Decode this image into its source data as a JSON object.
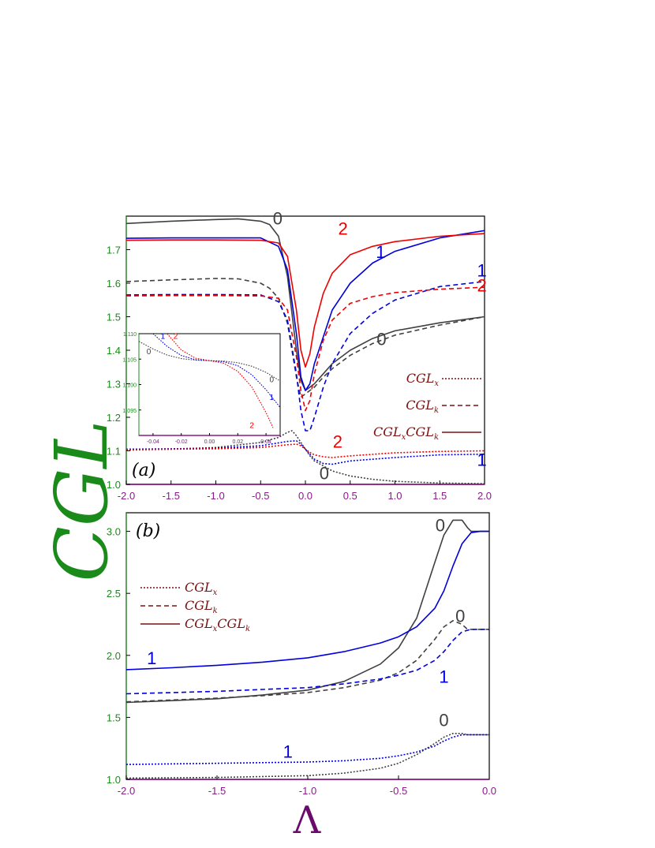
{
  "figure": {
    "ylabel": "CGL",
    "xlabel": "Λ"
  },
  "colors": {
    "n0": "#404040",
    "n1": "#0000dd",
    "n2": "#ee0000",
    "legend": "#7a1010",
    "yaxis": "#1a8a1a",
    "xaxis": "#8a1a8a"
  },
  "chart_data": [
    {
      "type": "line",
      "panel_tag": "(a)",
      "xlim": [
        -2.0,
        2.0
      ],
      "ylim": [
        1.0,
        1.8
      ],
      "xticks": [
        "-2.0",
        "-1.5",
        "-1.0",
        "-0.5",
        "0.0",
        "0.5",
        "1.0",
        "1.5",
        "2.0"
      ],
      "yticks": [
        "1.0",
        "1.1",
        "1.2",
        "1.3",
        "1.4",
        "1.5",
        "1.6",
        "1.7"
      ],
      "legend": [
        {
          "style": "dotted",
          "label": "CGL",
          "sub": "x"
        },
        {
          "style": "dashed",
          "label": "CGL",
          "sub": "k"
        },
        {
          "style": "solid",
          "label": "CGL",
          "sub": "x",
          "label2": "CGL",
          "sub2": "k"
        }
      ],
      "curve_labels": [
        {
          "text": "0",
          "color": "n0",
          "x": -0.31,
          "y": 1.775
        },
        {
          "text": "2",
          "color": "n2",
          "x": 0.42,
          "y": 1.745
        },
        {
          "text": "1",
          "color": "n1",
          "x": 0.84,
          "y": 1.675
        },
        {
          "text": "1",
          "color": "n1",
          "x": 1.97,
          "y": 1.62
        },
        {
          "text": "2",
          "color": "n2",
          "x": 1.97,
          "y": 1.575
        },
        {
          "text": "0",
          "color": "n0",
          "x": 0.85,
          "y": 1.415
        },
        {
          "text": "2",
          "color": "n2",
          "x": 0.36,
          "y": 1.11
        },
        {
          "text": "1",
          "color": "n1",
          "x": 1.97,
          "y": 1.055
        },
        {
          "text": "0",
          "color": "n0",
          "x": 0.21,
          "y": 1.015
        }
      ],
      "series": [
        {
          "n": 0,
          "style": "solid",
          "x": [
            -2.0,
            -1.5,
            -1.0,
            -0.75,
            -0.5,
            -0.4,
            -0.3,
            -0.2,
            -0.1,
            -0.05,
            0.0,
            0.05,
            0.1,
            0.2,
            0.3,
            0.5,
            0.75,
            1.0,
            1.5,
            2.0
          ],
          "y": [
            1.778,
            1.785,
            1.79,
            1.792,
            1.785,
            1.775,
            1.74,
            1.62,
            1.4,
            1.31,
            1.28,
            1.29,
            1.3,
            1.33,
            1.36,
            1.4,
            1.435,
            1.458,
            1.482,
            1.5
          ]
        },
        {
          "n": 0,
          "style": "dashed",
          "x": [
            -2.0,
            -1.5,
            -1.0,
            -0.75,
            -0.5,
            -0.4,
            -0.3,
            -0.2,
            -0.1,
            -0.05,
            0.0,
            0.05,
            0.1,
            0.2,
            0.3,
            0.5,
            0.75,
            1.0,
            1.5,
            2.0
          ],
          "y": [
            1.605,
            1.61,
            1.614,
            1.613,
            1.6,
            1.585,
            1.555,
            1.48,
            1.32,
            1.26,
            1.27,
            1.28,
            1.29,
            1.32,
            1.345,
            1.385,
            1.42,
            1.445,
            1.475,
            1.5
          ]
        },
        {
          "n": 0,
          "style": "dotted",
          "x": [
            -2.0,
            -1.5,
            -1.0,
            -0.5,
            -0.3,
            -0.2,
            -0.15,
            -0.1,
            -0.05,
            0.0,
            0.05,
            0.1,
            0.2,
            0.3,
            0.5,
            0.75,
            1.0,
            1.5,
            2.0
          ],
          "y": [
            1.102,
            1.105,
            1.11,
            1.125,
            1.14,
            1.155,
            1.16,
            1.145,
            1.125,
            1.105,
            1.085,
            1.07,
            1.055,
            1.04,
            1.025,
            1.015,
            1.009,
            1.004,
            1.002
          ]
        },
        {
          "n": 1,
          "style": "solid",
          "x": [
            -2.0,
            -1.5,
            -1.0,
            -0.5,
            -0.3,
            -0.2,
            -0.1,
            -0.05,
            0.0,
            0.05,
            0.1,
            0.2,
            0.3,
            0.5,
            0.75,
            1.0,
            1.5,
            2.0
          ],
          "y": [
            1.734,
            1.735,
            1.735,
            1.735,
            1.71,
            1.64,
            1.45,
            1.32,
            1.28,
            1.3,
            1.36,
            1.44,
            1.52,
            1.6,
            1.66,
            1.695,
            1.735,
            1.757
          ]
        },
        {
          "n": 1,
          "style": "dashed",
          "x": [
            -2.0,
            -1.5,
            -1.0,
            -0.5,
            -0.3,
            -0.2,
            -0.1,
            -0.05,
            0.0,
            0.05,
            0.1,
            0.2,
            0.3,
            0.5,
            0.75,
            1.0,
            1.5,
            2.0
          ],
          "y": [
            1.565,
            1.566,
            1.566,
            1.565,
            1.545,
            1.49,
            1.33,
            1.22,
            1.16,
            1.16,
            1.2,
            1.29,
            1.36,
            1.45,
            1.51,
            1.55,
            1.59,
            1.605
          ]
        },
        {
          "n": 1,
          "style": "dotted",
          "x": [
            -2.0,
            -1.5,
            -1.0,
            -0.5,
            -0.2,
            -0.1,
            -0.05,
            0.0,
            0.05,
            0.1,
            0.2,
            0.3,
            0.5,
            1.0,
            1.5,
            2.0
          ],
          "y": [
            1.105,
            1.106,
            1.108,
            1.115,
            1.128,
            1.13,
            1.12,
            1.105,
            1.09,
            1.075,
            1.062,
            1.06,
            1.07,
            1.08,
            1.088,
            1.09
          ]
        },
        {
          "n": 2,
          "style": "solid",
          "x": [
            -2.0,
            -1.5,
            -1.0,
            -0.5,
            -0.3,
            -0.2,
            -0.1,
            -0.05,
            0.0,
            0.05,
            0.1,
            0.2,
            0.3,
            0.5,
            0.75,
            1.0,
            1.5,
            2.0
          ],
          "y": [
            1.728,
            1.729,
            1.729,
            1.728,
            1.72,
            1.68,
            1.52,
            1.4,
            1.35,
            1.39,
            1.47,
            1.57,
            1.63,
            1.685,
            1.71,
            1.724,
            1.74,
            1.748
          ]
        },
        {
          "n": 2,
          "style": "dashed",
          "x": [
            -2.0,
            -1.5,
            -1.0,
            -0.5,
            -0.3,
            -0.2,
            -0.1,
            -0.05,
            0.0,
            0.05,
            0.1,
            0.2,
            0.3,
            0.5,
            0.75,
            1.0,
            1.5,
            2.0
          ],
          "y": [
            1.562,
            1.563,
            1.563,
            1.562,
            1.555,
            1.52,
            1.38,
            1.28,
            1.22,
            1.25,
            1.33,
            1.43,
            1.49,
            1.54,
            1.56,
            1.572,
            1.582,
            1.588
          ]
        },
        {
          "n": 2,
          "style": "dotted",
          "x": [
            -2.0,
            -1.5,
            -1.0,
            -0.5,
            -0.2,
            -0.1,
            -0.05,
            0.0,
            0.05,
            0.1,
            0.2,
            0.3,
            0.5,
            1.0,
            1.5,
            2.0
          ],
          "y": [
            1.104,
            1.105,
            1.106,
            1.11,
            1.118,
            1.12,
            1.115,
            1.105,
            1.095,
            1.088,
            1.082,
            1.08,
            1.085,
            1.094,
            1.098,
            1.1
          ]
        }
      ]
    },
    {
      "type": "line",
      "inset_of": "(a)",
      "xlim": [
        -0.05,
        0.05
      ],
      "ylim": [
        1.09,
        1.11
      ],
      "xticks": [
        "-0.04",
        "-0.02",
        "0.00",
        "0.02",
        "0.04"
      ],
      "yticks": [
        "1.095",
        "1.100",
        "1.105",
        "1.110"
      ],
      "curve_labels": [
        {
          "text": "0",
          "color": "n0",
          "x": -0.043,
          "y": 1.106
        },
        {
          "text": "1",
          "color": "n1",
          "x": -0.033,
          "y": 1.109
        },
        {
          "text": "2",
          "color": "n2",
          "x": -0.024,
          "y": 1.109
        },
        {
          "text": "0",
          "color": "n0",
          "x": 0.044,
          "y": 1.1005
        },
        {
          "text": "1",
          "color": "n1",
          "x": 0.044,
          "y": 1.097
        },
        {
          "text": "2",
          "color": "n2",
          "x": 0.03,
          "y": 1.0915
        }
      ],
      "series": [
        {
          "n": 0,
          "style": "dotted",
          "x": [
            -0.05,
            -0.04,
            -0.03,
            -0.02,
            -0.01,
            0.0,
            0.01,
            0.02,
            0.03,
            0.04,
            0.05
          ],
          "y": [
            1.1085,
            1.107,
            1.1058,
            1.1051,
            1.1048,
            1.1047,
            1.1046,
            1.1043,
            1.1036,
            1.1024,
            1.1007
          ]
        },
        {
          "n": 1,
          "style": "dotted",
          "x": [
            -0.04,
            -0.03,
            -0.02,
            -0.01,
            0.0,
            0.01,
            0.02,
            0.03,
            0.04,
            0.05
          ],
          "y": [
            1.11,
            1.1075,
            1.1057,
            1.1049,
            1.1047,
            1.1045,
            1.1037,
            1.1019,
            1.099,
            1.0955
          ]
        },
        {
          "n": 2,
          "style": "dotted",
          "x": [
            -0.03,
            -0.02,
            -0.01,
            0.0,
            0.01,
            0.02,
            0.03,
            0.04,
            0.045
          ],
          "y": [
            1.11,
            1.1068,
            1.1052,
            1.1047,
            1.1042,
            1.1026,
            1.0995,
            1.0945,
            1.0915
          ]
        }
      ]
    },
    {
      "type": "line",
      "panel_tag": "(b)",
      "xlim": [
        -2.0,
        0.0
      ],
      "ylim": [
        1.0,
        3.15
      ],
      "xticks": [
        "-2.0",
        "-1.5",
        "-1.0",
        "-0.5",
        "0.0"
      ],
      "yticks": [
        "1.0",
        "1.5",
        "2.0",
        "2.5",
        "3.0"
      ],
      "legend": [
        {
          "style": "dotted",
          "label": "CGL",
          "sub": "x"
        },
        {
          "style": "dashed",
          "label": "CGL",
          "sub": "k"
        },
        {
          "style": "solid",
          "label": "CGL",
          "sub": "x",
          "label2": "CGL",
          "sub2": "k"
        }
      ],
      "curve_labels": [
        {
          "text": "0",
          "color": "n0",
          "x": -0.27,
          "y": 3.0
        },
        {
          "text": "0",
          "color": "n0",
          "x": -0.16,
          "y": 2.27
        },
        {
          "text": "1",
          "color": "n1",
          "x": -1.86,
          "y": 1.93
        },
        {
          "text": "1",
          "color": "n1",
          "x": -0.25,
          "y": 1.78
        },
        {
          "text": "0",
          "color": "n0",
          "x": -0.25,
          "y": 1.43
        },
        {
          "text": "1",
          "color": "n1",
          "x": -1.11,
          "y": 1.175
        }
      ],
      "series": [
        {
          "n": 0,
          "style": "solid",
          "x": [
            -2.0,
            -1.75,
            -1.5,
            -1.25,
            -1.0,
            -0.8,
            -0.6,
            -0.5,
            -0.4,
            -0.3,
            -0.25,
            -0.2,
            -0.15,
            -0.12,
            -0.1,
            -0.05,
            0.0
          ],
          "y": [
            1.62,
            1.635,
            1.65,
            1.68,
            1.72,
            1.79,
            1.93,
            2.06,
            2.3,
            2.75,
            2.97,
            3.09,
            3.09,
            3.03,
            3.0,
            3.0,
            3.0
          ]
        },
        {
          "n": 0,
          "style": "dashed",
          "x": [
            -2.0,
            -1.75,
            -1.5,
            -1.25,
            -1.0,
            -0.8,
            -0.6,
            -0.5,
            -0.4,
            -0.3,
            -0.25,
            -0.2,
            -0.15,
            -0.12,
            -0.1,
            -0.05,
            0.0
          ],
          "y": [
            1.625,
            1.64,
            1.655,
            1.675,
            1.7,
            1.74,
            1.8,
            1.86,
            1.96,
            2.13,
            2.23,
            2.28,
            2.25,
            2.21,
            2.21,
            2.21,
            2.21
          ]
        },
        {
          "n": 0,
          "style": "dotted",
          "x": [
            -2.0,
            -1.5,
            -1.0,
            -0.8,
            -0.6,
            -0.5,
            -0.4,
            -0.3,
            -0.25,
            -0.2,
            -0.15,
            -0.12,
            -0.1,
            -0.05,
            0.0
          ],
          "y": [
            1.01,
            1.015,
            1.03,
            1.05,
            1.09,
            1.13,
            1.2,
            1.29,
            1.34,
            1.37,
            1.37,
            1.36,
            1.36,
            1.36,
            1.36
          ]
        },
        {
          "n": 1,
          "style": "solid",
          "x": [
            -2.0,
            -1.75,
            -1.5,
            -1.25,
            -1.0,
            -0.8,
            -0.6,
            -0.5,
            -0.4,
            -0.3,
            -0.25,
            -0.2,
            -0.15,
            -0.1,
            -0.05,
            0.0
          ],
          "y": [
            1.885,
            1.9,
            1.92,
            1.945,
            1.98,
            2.03,
            2.1,
            2.15,
            2.23,
            2.38,
            2.52,
            2.72,
            2.9,
            2.99,
            3.0,
            3.0
          ]
        },
        {
          "n": 1,
          "style": "dashed",
          "x": [
            -2.0,
            -1.75,
            -1.5,
            -1.25,
            -1.0,
            -0.8,
            -0.6,
            -0.5,
            -0.4,
            -0.3,
            -0.25,
            -0.2,
            -0.15,
            -0.1,
            -0.05,
            0.0
          ],
          "y": [
            1.69,
            1.7,
            1.71,
            1.725,
            1.74,
            1.77,
            1.81,
            1.84,
            1.88,
            1.96,
            2.03,
            2.12,
            2.19,
            2.21,
            2.21,
            2.21
          ]
        },
        {
          "n": 1,
          "style": "dotted",
          "x": [
            -2.0,
            -1.5,
            -1.0,
            -0.8,
            -0.6,
            -0.5,
            -0.4,
            -0.3,
            -0.25,
            -0.2,
            -0.15,
            -0.1,
            -0.05,
            0.0
          ],
          "y": [
            1.12,
            1.13,
            1.14,
            1.15,
            1.17,
            1.19,
            1.22,
            1.27,
            1.31,
            1.34,
            1.36,
            1.36,
            1.36,
            1.36
          ]
        }
      ]
    }
  ]
}
